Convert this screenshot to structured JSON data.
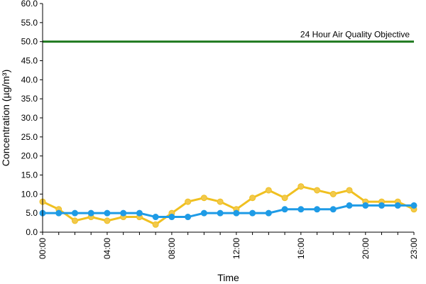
{
  "chart_data": {
    "type": "line",
    "title": "",
    "xlabel": "Time",
    "ylabel": "Concentration (µg/m³)",
    "ylim": [
      0,
      60
    ],
    "y_ticks": [
      "0.0",
      "5.0",
      "10.0",
      "15.0",
      "20.0",
      "25.0",
      "30.0",
      "35.0",
      "40.0",
      "45.0",
      "50.0",
      "55.0",
      "60.0"
    ],
    "x_tick_labels": [
      "00:00",
      "04:00",
      "08:00",
      "12:00",
      "16:00",
      "20:00",
      "23:00"
    ],
    "x_tick_hours": [
      0,
      4,
      8,
      12,
      16,
      20,
      23
    ],
    "grid": false,
    "x": [
      0,
      1,
      2,
      3,
      4,
      5,
      6,
      7,
      8,
      9,
      10,
      11,
      12,
      13,
      14,
      15,
      16,
      17,
      18,
      19,
      20,
      21,
      22,
      23
    ],
    "series": [
      {
        "color": "#f0c020",
        "marker_color": "#f2c94c",
        "values": [
          8,
          6,
          3,
          4,
          3,
          4,
          4,
          2,
          5,
          8,
          9,
          8,
          6,
          9,
          11,
          9,
          12,
          11,
          10,
          11,
          8,
          8,
          8,
          6
        ]
      },
      {
        "color": "#1e9be6",
        "values": [
          5,
          5,
          5,
          5,
          5,
          5,
          5,
          4,
          4,
          4,
          5,
          5,
          5,
          5,
          5,
          6,
          6,
          6,
          6,
          7,
          7,
          7,
          7,
          7
        ]
      }
    ],
    "reference_line": {
      "value": 50,
      "label": "24 Hour Air Quality Objective",
      "color": "#1f7a1f"
    }
  }
}
